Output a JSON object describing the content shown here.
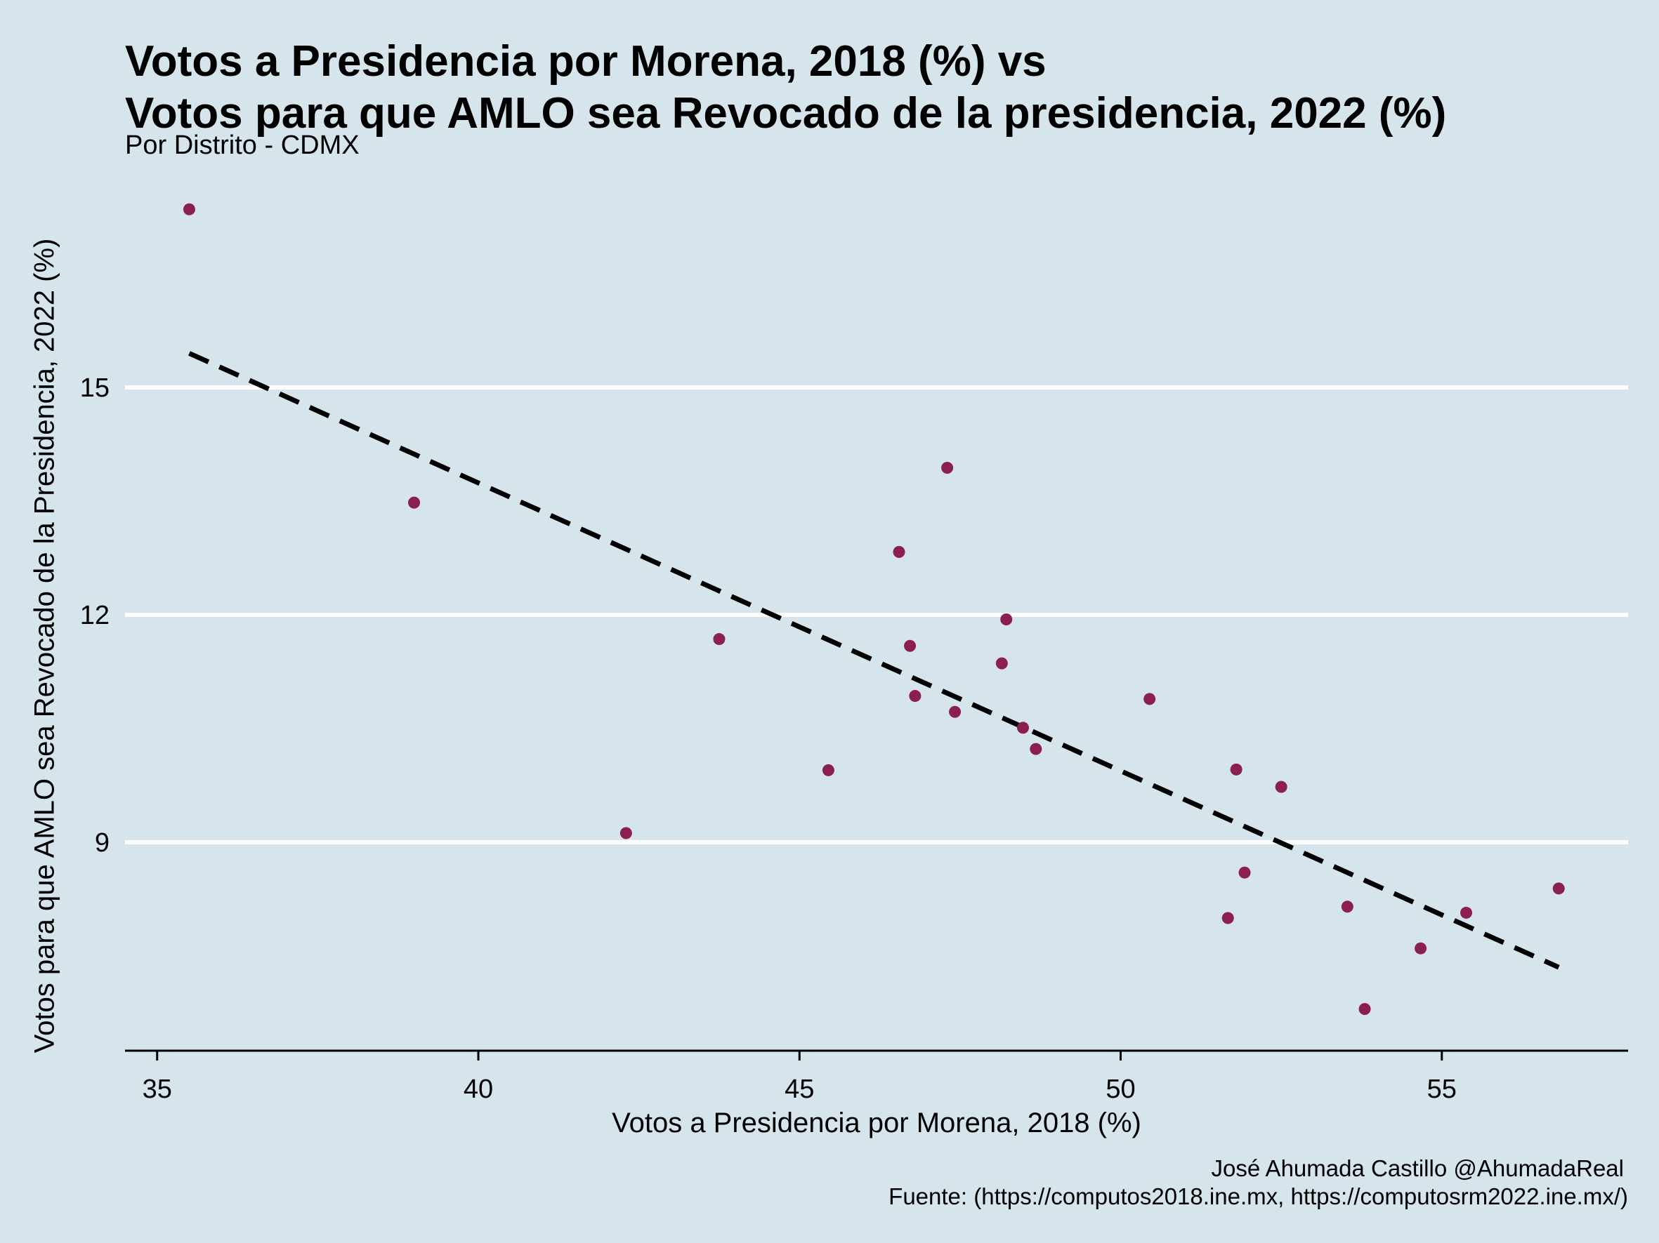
{
  "colors": {
    "background": "#d6e4eb",
    "point": "#8b1f4f",
    "grid": "#ffffff",
    "trend": "#000000"
  },
  "chart_data": {
    "type": "scatter",
    "title_line1": "Votos a Presidencia por Morena, 2018 (%)  vs",
    "title_line2": "Votos para que AMLO sea Revocado de la presidencia, 2022 (%)",
    "subtitle": "Por Distrito - CDMX",
    "xlabel": "Votos a Presidencia por Morena, 2018 (%)",
    "ylabel": "Votos para que AMLO sea Revocado de la Presidencia, 2022 (%)",
    "caption_line1": "José Ahumada Castillo @AhumadaReal",
    "caption_line2": "Fuente: (https://computos2018.ine.mx, https://computosrm2022.ine.mx/)",
    "xlim": [
      34.5,
      57.9
    ],
    "ylim": [
      6.25,
      18.0
    ],
    "xticks": [
      35,
      40,
      45,
      50,
      55
    ],
    "yticks": [
      9,
      12,
      15
    ],
    "grid": "horizontal",
    "points": [
      {
        "x": 35.5,
        "y": 17.35
      },
      {
        "x": 39.0,
        "y": 13.48
      },
      {
        "x": 42.3,
        "y": 9.12
      },
      {
        "x": 43.75,
        "y": 11.68
      },
      {
        "x": 45.45,
        "y": 9.95
      },
      {
        "x": 46.55,
        "y": 12.83
      },
      {
        "x": 46.72,
        "y": 11.59
      },
      {
        "x": 46.8,
        "y": 10.93
      },
      {
        "x": 47.3,
        "y": 13.94
      },
      {
        "x": 47.42,
        "y": 10.72
      },
      {
        "x": 48.15,
        "y": 11.36
      },
      {
        "x": 48.22,
        "y": 11.94
      },
      {
        "x": 48.48,
        "y": 10.51
      },
      {
        "x": 48.68,
        "y": 10.23
      },
      {
        "x": 50.45,
        "y": 10.89
      },
      {
        "x": 51.67,
        "y": 8.0
      },
      {
        "x": 51.8,
        "y": 9.96
      },
      {
        "x": 51.93,
        "y": 8.6
      },
      {
        "x": 52.5,
        "y": 9.73
      },
      {
        "x": 53.53,
        "y": 8.15
      },
      {
        "x": 53.8,
        "y": 6.8
      },
      {
        "x": 54.67,
        "y": 7.6
      },
      {
        "x": 55.38,
        "y": 8.07
      },
      {
        "x": 56.82,
        "y": 8.39
      }
    ],
    "trendline": {
      "style": "dashed",
      "x": [
        35.5,
        56.82
      ],
      "y": [
        15.45,
        7.35
      ]
    }
  }
}
